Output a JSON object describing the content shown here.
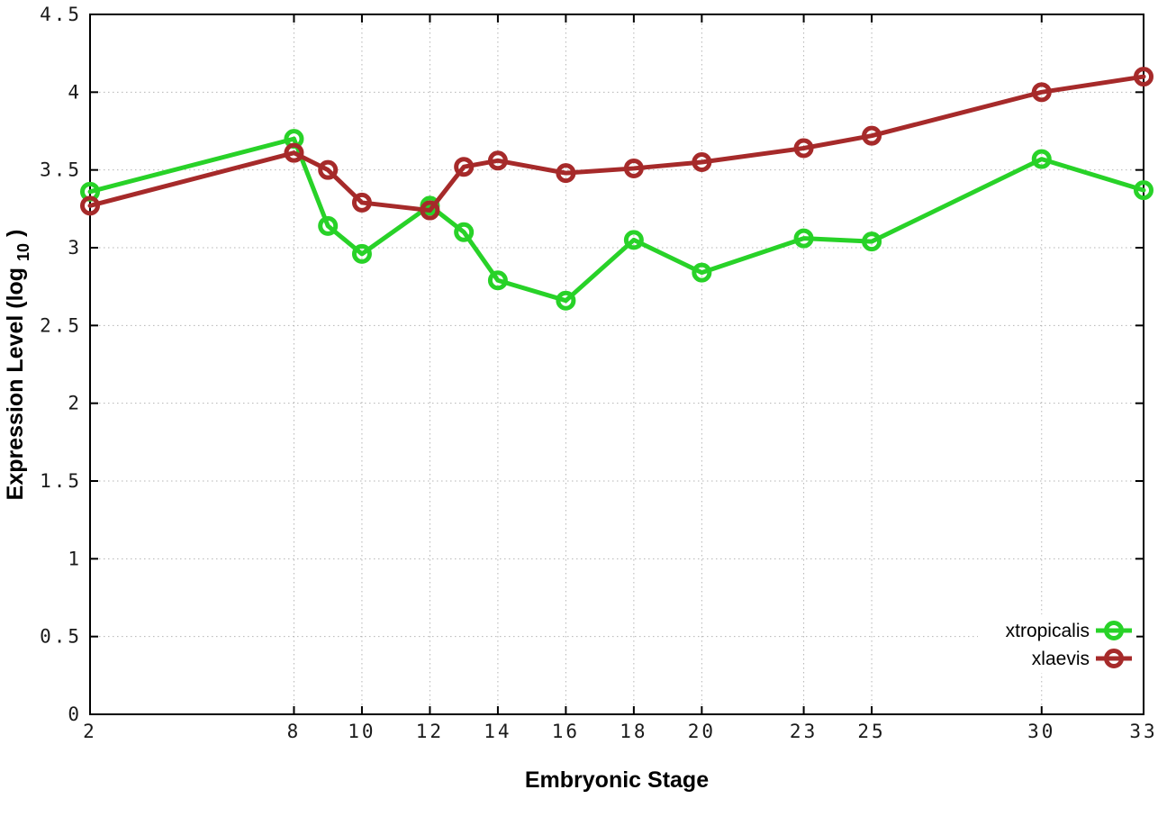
{
  "chart_data": {
    "type": "line",
    "title": "",
    "xlabel": "Embryonic Stage",
    "ylabel": {
      "main": "Expression Level (log",
      "sub": "10",
      "end": ")"
    },
    "xlim": [
      2,
      33
    ],
    "ylim": [
      0,
      4.5
    ],
    "grid": "dotted",
    "legend_position": "bottom-right",
    "x": [
      2,
      8,
      9,
      10,
      12,
      13,
      14,
      16,
      18,
      20,
      23,
      25,
      30,
      33
    ],
    "series": [
      {
        "name": "xtropicalis",
        "color": "#28d228",
        "marker": "open-circle",
        "values": [
          3.36,
          3.7,
          3.14,
          2.96,
          3.27,
          3.1,
          2.79,
          2.66,
          3.05,
          2.84,
          3.06,
          3.04,
          3.57,
          3.37
        ]
      },
      {
        "name": "xlaevis",
        "color": "#a62a2a",
        "marker": "open-circle",
        "values": [
          3.27,
          3.61,
          3.5,
          3.29,
          3.24,
          3.52,
          3.56,
          3.48,
          3.51,
          3.55,
          3.64,
          3.72,
          4.0,
          4.1
        ]
      }
    ],
    "xticks": {
      "values": [
        2,
        8,
        10,
        12,
        14,
        16,
        18,
        20,
        23,
        25,
        30,
        33
      ],
      "labels": [
        "2",
        "8",
        "10",
        "12",
        "14",
        "16",
        "18",
        "20",
        "23",
        "25",
        "30",
        "33"
      ]
    },
    "yticks": {
      "values": [
        0,
        0.5,
        1,
        1.5,
        2,
        2.5,
        3,
        3.5,
        4,
        4.5
      ],
      "labels": [
        "0",
        "0.5",
        "1",
        "1.5",
        "2",
        "2.5",
        "3",
        "3.5",
        "4",
        "4.5"
      ]
    }
  },
  "colors": {
    "background": "#ffffff",
    "plot_border": "#000000",
    "grid": "#b4b4b4",
    "tick": "#000000"
  }
}
